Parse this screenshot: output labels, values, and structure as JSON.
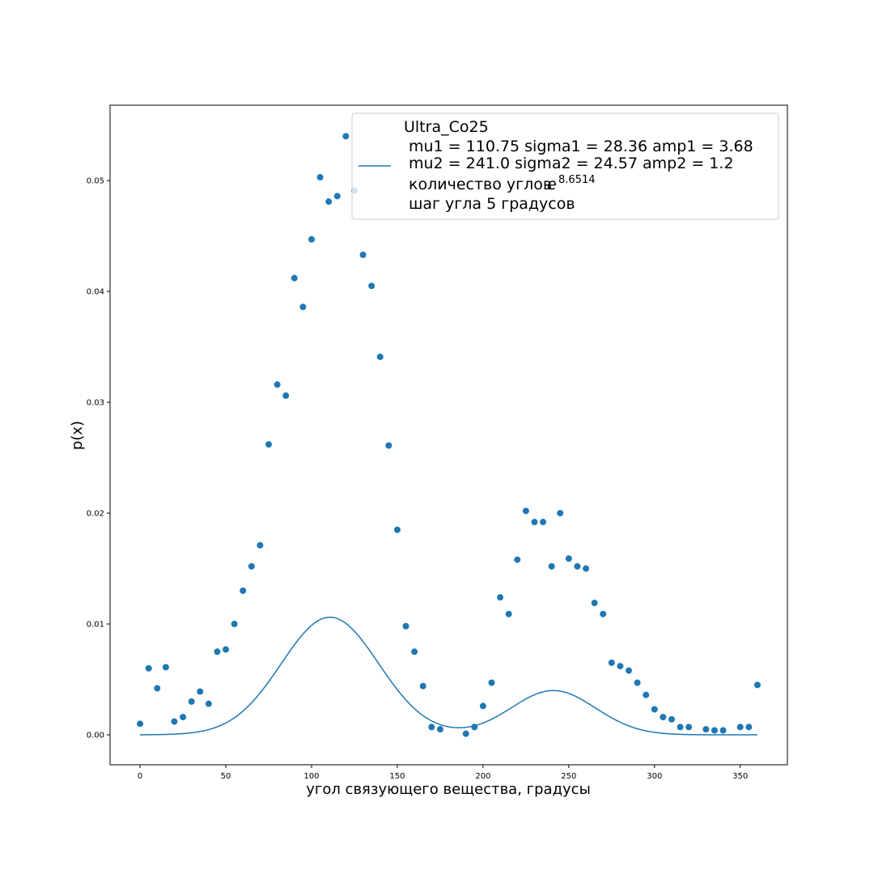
{
  "chart_data": {
    "type": "scatter",
    "title": "",
    "xlabel": "угол связующего вещества, градусы",
    "ylabel": "p(x)",
    "xlim": [
      -17.5,
      377.5
    ],
    "ylim": [
      -0.0027,
      0.0568
    ],
    "xticks": [
      0,
      50,
      100,
      150,
      200,
      250,
      300,
      350
    ],
    "yticks": [
      0.0,
      0.01,
      0.02,
      0.03,
      0.04,
      0.05
    ],
    "ytick_labels": [
      "0.00",
      "0.01",
      "0.02",
      "0.03",
      "0.04",
      "0.05"
    ],
    "grid": false,
    "legend": {
      "placement": "top-right",
      "title": "Ultra_Co25",
      "lines": [
        "mu1 = 110.75 sigma1 = 28.36 amp1 = 3.68",
        "mu2 = 241.0 sigma2 = 24.57 amp2 = 1.2",
        "количество углов",
        "шаг угла 5 градусов"
      ],
      "exp_base": "e",
      "exp_power": "8.6514"
    },
    "series": [
      {
        "kind": "points",
        "color": "#1f77b4",
        "x": [
          0,
          5,
          10,
          15,
          20,
          25,
          30,
          35,
          40,
          45,
          50,
          55,
          60,
          65,
          70,
          75,
          80,
          85,
          90,
          95,
          100,
          105,
          110,
          115,
          120,
          125,
          130,
          135,
          140,
          145,
          150,
          155,
          160,
          165,
          170,
          175,
          190,
          195,
          200,
          205,
          210,
          215,
          220,
          225,
          230,
          235,
          240,
          245,
          250,
          255,
          260,
          265,
          270,
          275,
          280,
          285,
          290,
          295,
          300,
          305,
          310,
          315,
          320,
          330,
          335,
          340,
          350,
          355,
          360
        ],
        "y": [
          0.001,
          0.006,
          0.0042,
          0.0061,
          0.0012,
          0.0016,
          0.003,
          0.0039,
          0.0028,
          0.0075,
          0.0077,
          0.01,
          0.013,
          0.0152,
          0.0171,
          0.0262,
          0.0316,
          0.0306,
          0.0412,
          0.0386,
          0.0447,
          0.0503,
          0.0481,
          0.0486,
          0.054,
          0.0491,
          0.0433,
          0.0405,
          0.0341,
          0.0261,
          0.0185,
          0.0098,
          0.0075,
          0.0044,
          0.0007,
          0.0005,
          0.0001,
          0.0007,
          0.0026,
          0.0047,
          0.0124,
          0.0109,
          0.0158,
          0.0202,
          0.0192,
          0.0192,
          0.0152,
          0.02,
          0.0159,
          0.0152,
          0.015,
          0.0119,
          0.0109,
          0.0065,
          0.0062,
          0.0058,
          0.0047,
          0.0036,
          0.0023,
          0.0016,
          0.0014,
          0.0007,
          0.0007,
          0.0005,
          0.0004,
          0.0004,
          0.0007,
          0.0007,
          0.0045
        ]
      },
      {
        "kind": "fit",
        "color": "#1f77b4",
        "mu1": 110.75,
        "sigma1": 28.36,
        "amp1": 3.68,
        "mu2": 241.0,
        "sigma2": 24.57,
        "amp2": 1.2,
        "x_range": [
          0,
          360
        ]
      }
    ]
  }
}
